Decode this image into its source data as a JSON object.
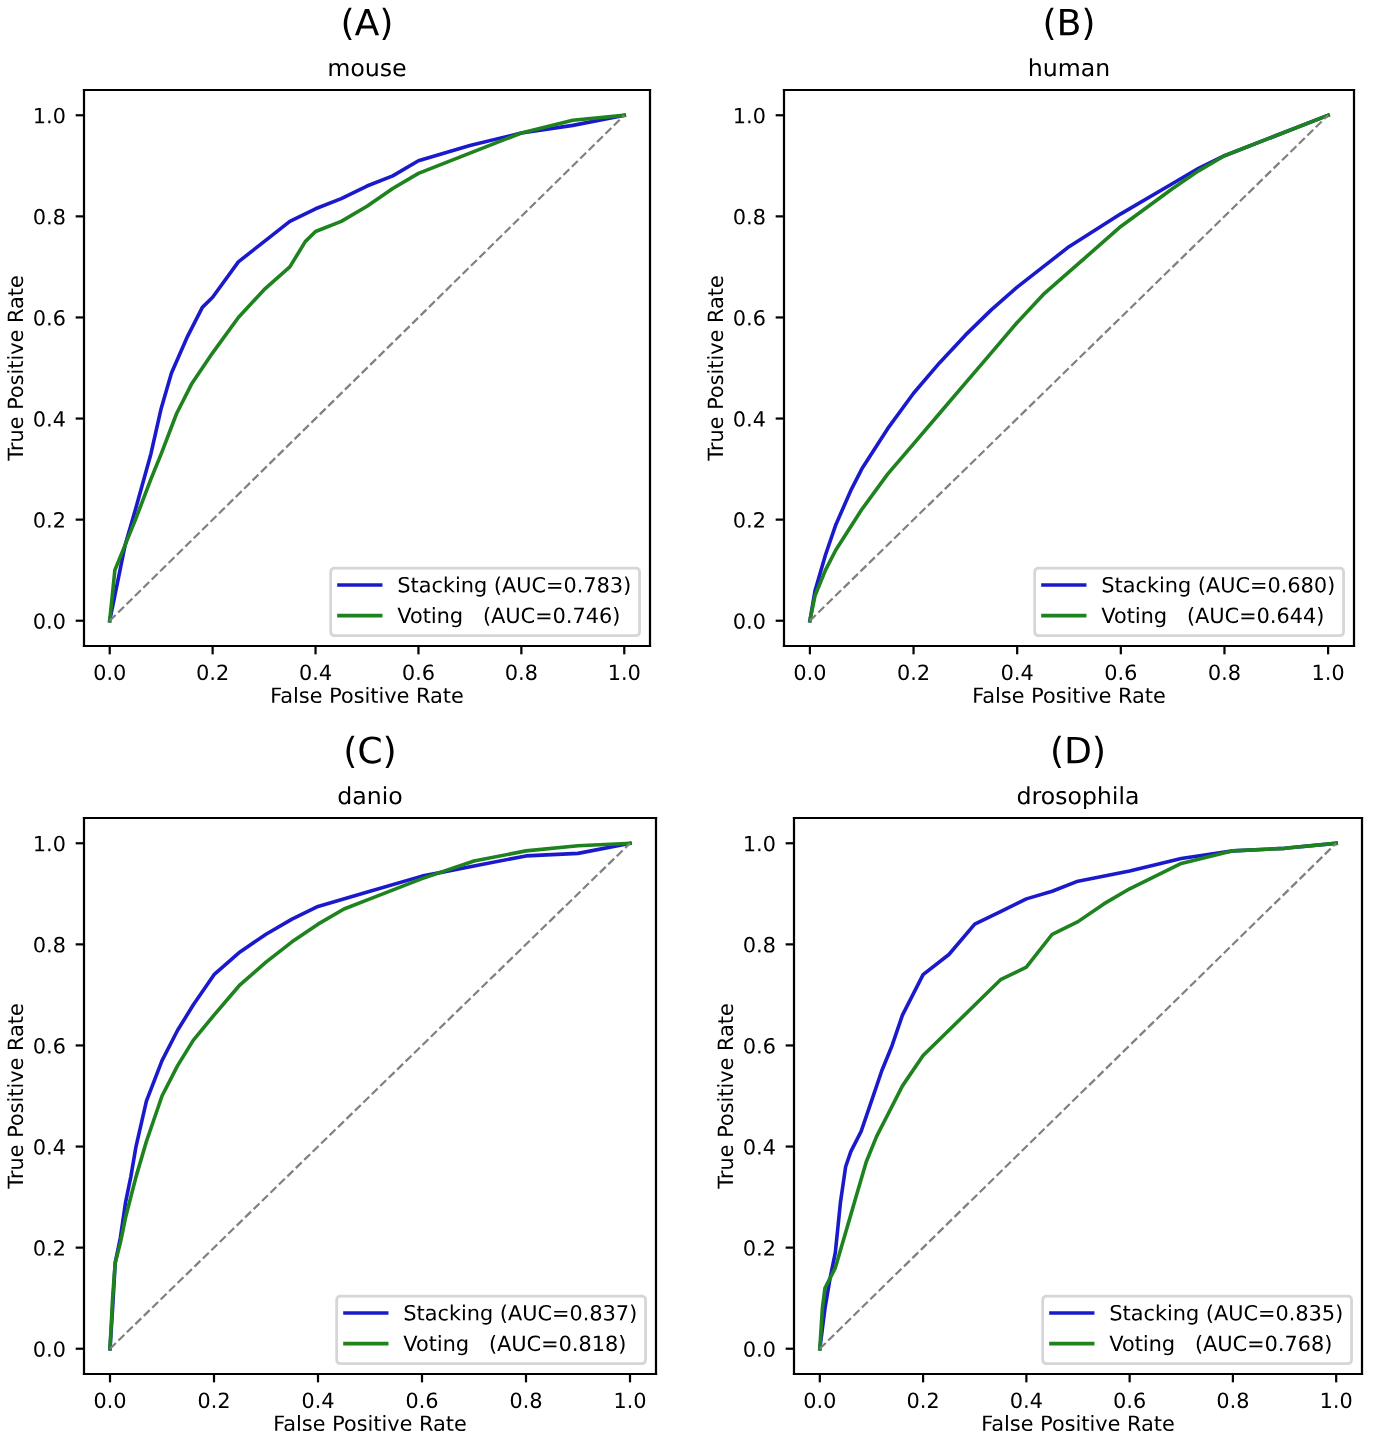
{
  "chart_data": [
    {
      "type": "line",
      "title": "(A)",
      "subtitle": "mouse",
      "xlabel": "False Positive Rate",
      "ylabel": "True Positive Rate",
      "xlim": [
        -0.05,
        1.05
      ],
      "ylim": [
        -0.05,
        1.05
      ],
      "xticks": [
        {
          "value": 0,
          "label": "0.0"
        },
        {
          "value": 0.2,
          "label": "0.2"
        },
        {
          "value": 0.4,
          "label": "0.4"
        },
        {
          "value": 0.6,
          "label": "0.6"
        },
        {
          "value": 0.8,
          "label": "0.8"
        },
        {
          "value": 1,
          "label": "1.0"
        }
      ],
      "yticks": [
        {
          "value": 0,
          "label": "0.0"
        },
        {
          "value": 0.2,
          "label": "0.2"
        },
        {
          "value": 0.4,
          "label": "0.4"
        },
        {
          "value": 0.6,
          "label": "0.6"
        },
        {
          "value": 0.8,
          "label": "0.8"
        },
        {
          "value": 1,
          "label": "1.0"
        }
      ],
      "legend": "bottom right",
      "grid": false,
      "series": [
        {
          "name": "Stacking (AUC=0.783)",
          "color": "#1a1acc",
          "x": [
            0,
            0.01,
            0.02,
            0.03,
            0.05,
            0.08,
            0.1,
            0.12,
            0.15,
            0.18,
            0.2,
            0.25,
            0.3,
            0.35,
            0.4,
            0.45,
            0.5,
            0.55,
            0.6,
            0.7,
            0.8,
            0.9,
            1
          ],
          "values": [
            0,
            0.05,
            0.1,
            0.15,
            0.22,
            0.33,
            0.42,
            0.49,
            0.56,
            0.62,
            0.64,
            0.71,
            0.75,
            0.79,
            0.815,
            0.835,
            0.86,
            0.88,
            0.91,
            0.94,
            0.965,
            0.98,
            1
          ]
        },
        {
          "name": "Voting   (AUC=0.746)",
          "color": "#1e821e",
          "x": [
            0,
            0.01,
            0.03,
            0.05,
            0.08,
            0.1,
            0.13,
            0.16,
            0.2,
            0.25,
            0.3,
            0.35,
            0.38,
            0.4,
            0.45,
            0.5,
            0.55,
            0.6,
            0.7,
            0.8,
            0.9,
            1
          ],
          "values": [
            0,
            0.1,
            0.15,
            0.2,
            0.28,
            0.33,
            0.41,
            0.47,
            0.53,
            0.6,
            0.655,
            0.7,
            0.75,
            0.77,
            0.79,
            0.82,
            0.855,
            0.885,
            0.925,
            0.965,
            0.99,
            1
          ]
        },
        {
          "color": "#808080",
          "line_style": "dashed",
          "x": [
            0,
            1
          ],
          "values": [
            0,
            1
          ]
        }
      ]
    },
    {
      "type": "line",
      "title": "(B)",
      "subtitle": "human",
      "xlabel": "False Positive Rate",
      "ylabel": "True Positive Rate",
      "xlim": [
        -0.05,
        1.05
      ],
      "ylim": [
        -0.05,
        1.05
      ],
      "xticks": [
        {
          "value": 0,
          "label": "0.0"
        },
        {
          "value": 0.2,
          "label": "0.2"
        },
        {
          "value": 0.4,
          "label": "0.4"
        },
        {
          "value": 0.6,
          "label": "0.6"
        },
        {
          "value": 0.8,
          "label": "0.8"
        },
        {
          "value": 1,
          "label": "1.0"
        }
      ],
      "yticks": [
        {
          "value": 0,
          "label": "0.0"
        },
        {
          "value": 0.2,
          "label": "0.2"
        },
        {
          "value": 0.4,
          "label": "0.4"
        },
        {
          "value": 0.6,
          "label": "0.6"
        },
        {
          "value": 0.8,
          "label": "0.8"
        },
        {
          "value": 1,
          "label": "1.0"
        }
      ],
      "legend": "bottom right",
      "grid": false,
      "series": [
        {
          "name": "Stacking (AUC=0.680)",
          "color": "#1a1acc",
          "x": [
            0,
            0.01,
            0.03,
            0.05,
            0.08,
            0.1,
            0.15,
            0.2,
            0.25,
            0.3,
            0.35,
            0.4,
            0.45,
            0.5,
            0.6,
            0.7,
            0.75,
            0.8,
            0.9,
            1
          ],
          "values": [
            0,
            0.06,
            0.13,
            0.19,
            0.26,
            0.3,
            0.38,
            0.45,
            0.51,
            0.565,
            0.615,
            0.66,
            0.7,
            0.74,
            0.805,
            0.865,
            0.895,
            0.92,
            0.96,
            1
          ]
        },
        {
          "name": "Voting   (AUC=0.644)",
          "color": "#1e821e",
          "x": [
            0,
            0.01,
            0.03,
            0.05,
            0.1,
            0.15,
            0.2,
            0.25,
            0.3,
            0.35,
            0.4,
            0.45,
            0.5,
            0.6,
            0.7,
            0.75,
            0.8,
            0.9,
            1
          ],
          "values": [
            0,
            0.05,
            0.1,
            0.14,
            0.22,
            0.29,
            0.35,
            0.41,
            0.47,
            0.53,
            0.59,
            0.645,
            0.69,
            0.78,
            0.855,
            0.89,
            0.92,
            0.96,
            1
          ]
        },
        {
          "color": "#808080",
          "line_style": "dashed",
          "x": [
            0,
            1
          ],
          "values": [
            0,
            1
          ]
        }
      ]
    },
    {
      "type": "line",
      "title": "(C)",
      "subtitle": "danio",
      "xlabel": "False Positive Rate",
      "ylabel": "True Positive Rate",
      "xlim": [
        -0.05,
        1.05
      ],
      "ylim": [
        -0.05,
        1.05
      ],
      "xticks": [
        {
          "value": 0,
          "label": "0.0"
        },
        {
          "value": 0.2,
          "label": "0.2"
        },
        {
          "value": 0.4,
          "label": "0.4"
        },
        {
          "value": 0.6,
          "label": "0.6"
        },
        {
          "value": 0.8,
          "label": "0.8"
        },
        {
          "value": 1,
          "label": "1.0"
        }
      ],
      "yticks": [
        {
          "value": 0,
          "label": "0.0"
        },
        {
          "value": 0.2,
          "label": "0.2"
        },
        {
          "value": 0.4,
          "label": "0.4"
        },
        {
          "value": 0.6,
          "label": "0.6"
        },
        {
          "value": 0.8,
          "label": "0.8"
        },
        {
          "value": 1,
          "label": "1.0"
        }
      ],
      "legend": "bottom right",
      "grid": false,
      "series": [
        {
          "name": "Stacking (AUC=0.837)",
          "color": "#1a1acc",
          "x": [
            0,
            0.005,
            0.01,
            0.02,
            0.03,
            0.04,
            0.05,
            0.07,
            0.1,
            0.13,
            0.16,
            0.2,
            0.25,
            0.3,
            0.35,
            0.4,
            0.5,
            0.6,
            0.7,
            0.8,
            0.9,
            1
          ],
          "values": [
            0,
            0.08,
            0.17,
            0.22,
            0.29,
            0.34,
            0.4,
            0.49,
            0.57,
            0.63,
            0.68,
            0.74,
            0.785,
            0.82,
            0.85,
            0.875,
            0.905,
            0.935,
            0.955,
            0.975,
            0.98,
            1
          ]
        },
        {
          "name": "Voting   (AUC=0.818)",
          "color": "#1e821e",
          "x": [
            0,
            0.005,
            0.01,
            0.02,
            0.03,
            0.05,
            0.07,
            0.1,
            0.13,
            0.16,
            0.2,
            0.25,
            0.3,
            0.35,
            0.4,
            0.45,
            0.5,
            0.6,
            0.7,
            0.8,
            0.9,
            1
          ],
          "values": [
            0,
            0.1,
            0.17,
            0.21,
            0.26,
            0.34,
            0.41,
            0.5,
            0.56,
            0.61,
            0.66,
            0.72,
            0.765,
            0.805,
            0.84,
            0.87,
            0.89,
            0.93,
            0.965,
            0.985,
            0.995,
            1
          ]
        },
        {
          "color": "#808080",
          "line_style": "dashed",
          "x": [
            0,
            1
          ],
          "values": [
            0,
            1
          ]
        }
      ]
    },
    {
      "type": "line",
      "title": "(D)",
      "subtitle": "drosophila",
      "xlabel": "False Positive Rate",
      "ylabel": "True Positive Rate",
      "xlim": [
        -0.05,
        1.05
      ],
      "ylim": [
        -0.05,
        1.05
      ],
      "xticks": [
        {
          "value": 0,
          "label": "0.0"
        },
        {
          "value": 0.2,
          "label": "0.2"
        },
        {
          "value": 0.4,
          "label": "0.4"
        },
        {
          "value": 0.6,
          "label": "0.6"
        },
        {
          "value": 0.8,
          "label": "0.8"
        },
        {
          "value": 1,
          "label": "1.0"
        }
      ],
      "yticks": [
        {
          "value": 0,
          "label": "0.0"
        },
        {
          "value": 0.2,
          "label": "0.2"
        },
        {
          "value": 0.4,
          "label": "0.4"
        },
        {
          "value": 0.6,
          "label": "0.6"
        },
        {
          "value": 0.8,
          "label": "0.8"
        },
        {
          "value": 1,
          "label": "1.0"
        }
      ],
      "legend": "bottom right",
      "grid": false,
      "series": [
        {
          "name": "Stacking (AUC=0.835)",
          "color": "#1a1acc",
          "x": [
            0,
            0.005,
            0.01,
            0.02,
            0.03,
            0.04,
            0.05,
            0.06,
            0.08,
            0.1,
            0.12,
            0.14,
            0.16,
            0.18,
            0.2,
            0.25,
            0.3,
            0.35,
            0.4,
            0.45,
            0.5,
            0.6,
            0.7,
            0.8,
            0.9,
            1
          ],
          "values": [
            0,
            0.04,
            0.08,
            0.14,
            0.19,
            0.29,
            0.36,
            0.39,
            0.43,
            0.49,
            0.55,
            0.6,
            0.66,
            0.7,
            0.74,
            0.78,
            0.84,
            0.865,
            0.89,
            0.905,
            0.925,
            0.945,
            0.97,
            0.985,
            0.99,
            1
          ]
        },
        {
          "name": "Voting   (AUC=0.768)",
          "color": "#1e821e",
          "x": [
            0,
            0.005,
            0.01,
            0.03,
            0.05,
            0.07,
            0.09,
            0.11,
            0.13,
            0.16,
            0.2,
            0.25,
            0.3,
            0.35,
            0.4,
            0.45,
            0.5,
            0.55,
            0.6,
            0.7,
            0.8,
            0.9,
            1
          ],
          "values": [
            0,
            0.08,
            0.12,
            0.16,
            0.23,
            0.3,
            0.37,
            0.42,
            0.46,
            0.52,
            0.58,
            0.63,
            0.68,
            0.73,
            0.755,
            0.82,
            0.845,
            0.88,
            0.91,
            0.96,
            0.985,
            0.99,
            1
          ]
        },
        {
          "color": "#808080",
          "line_style": "dashed",
          "x": [
            0,
            1
          ],
          "values": [
            0,
            1
          ]
        }
      ]
    }
  ]
}
